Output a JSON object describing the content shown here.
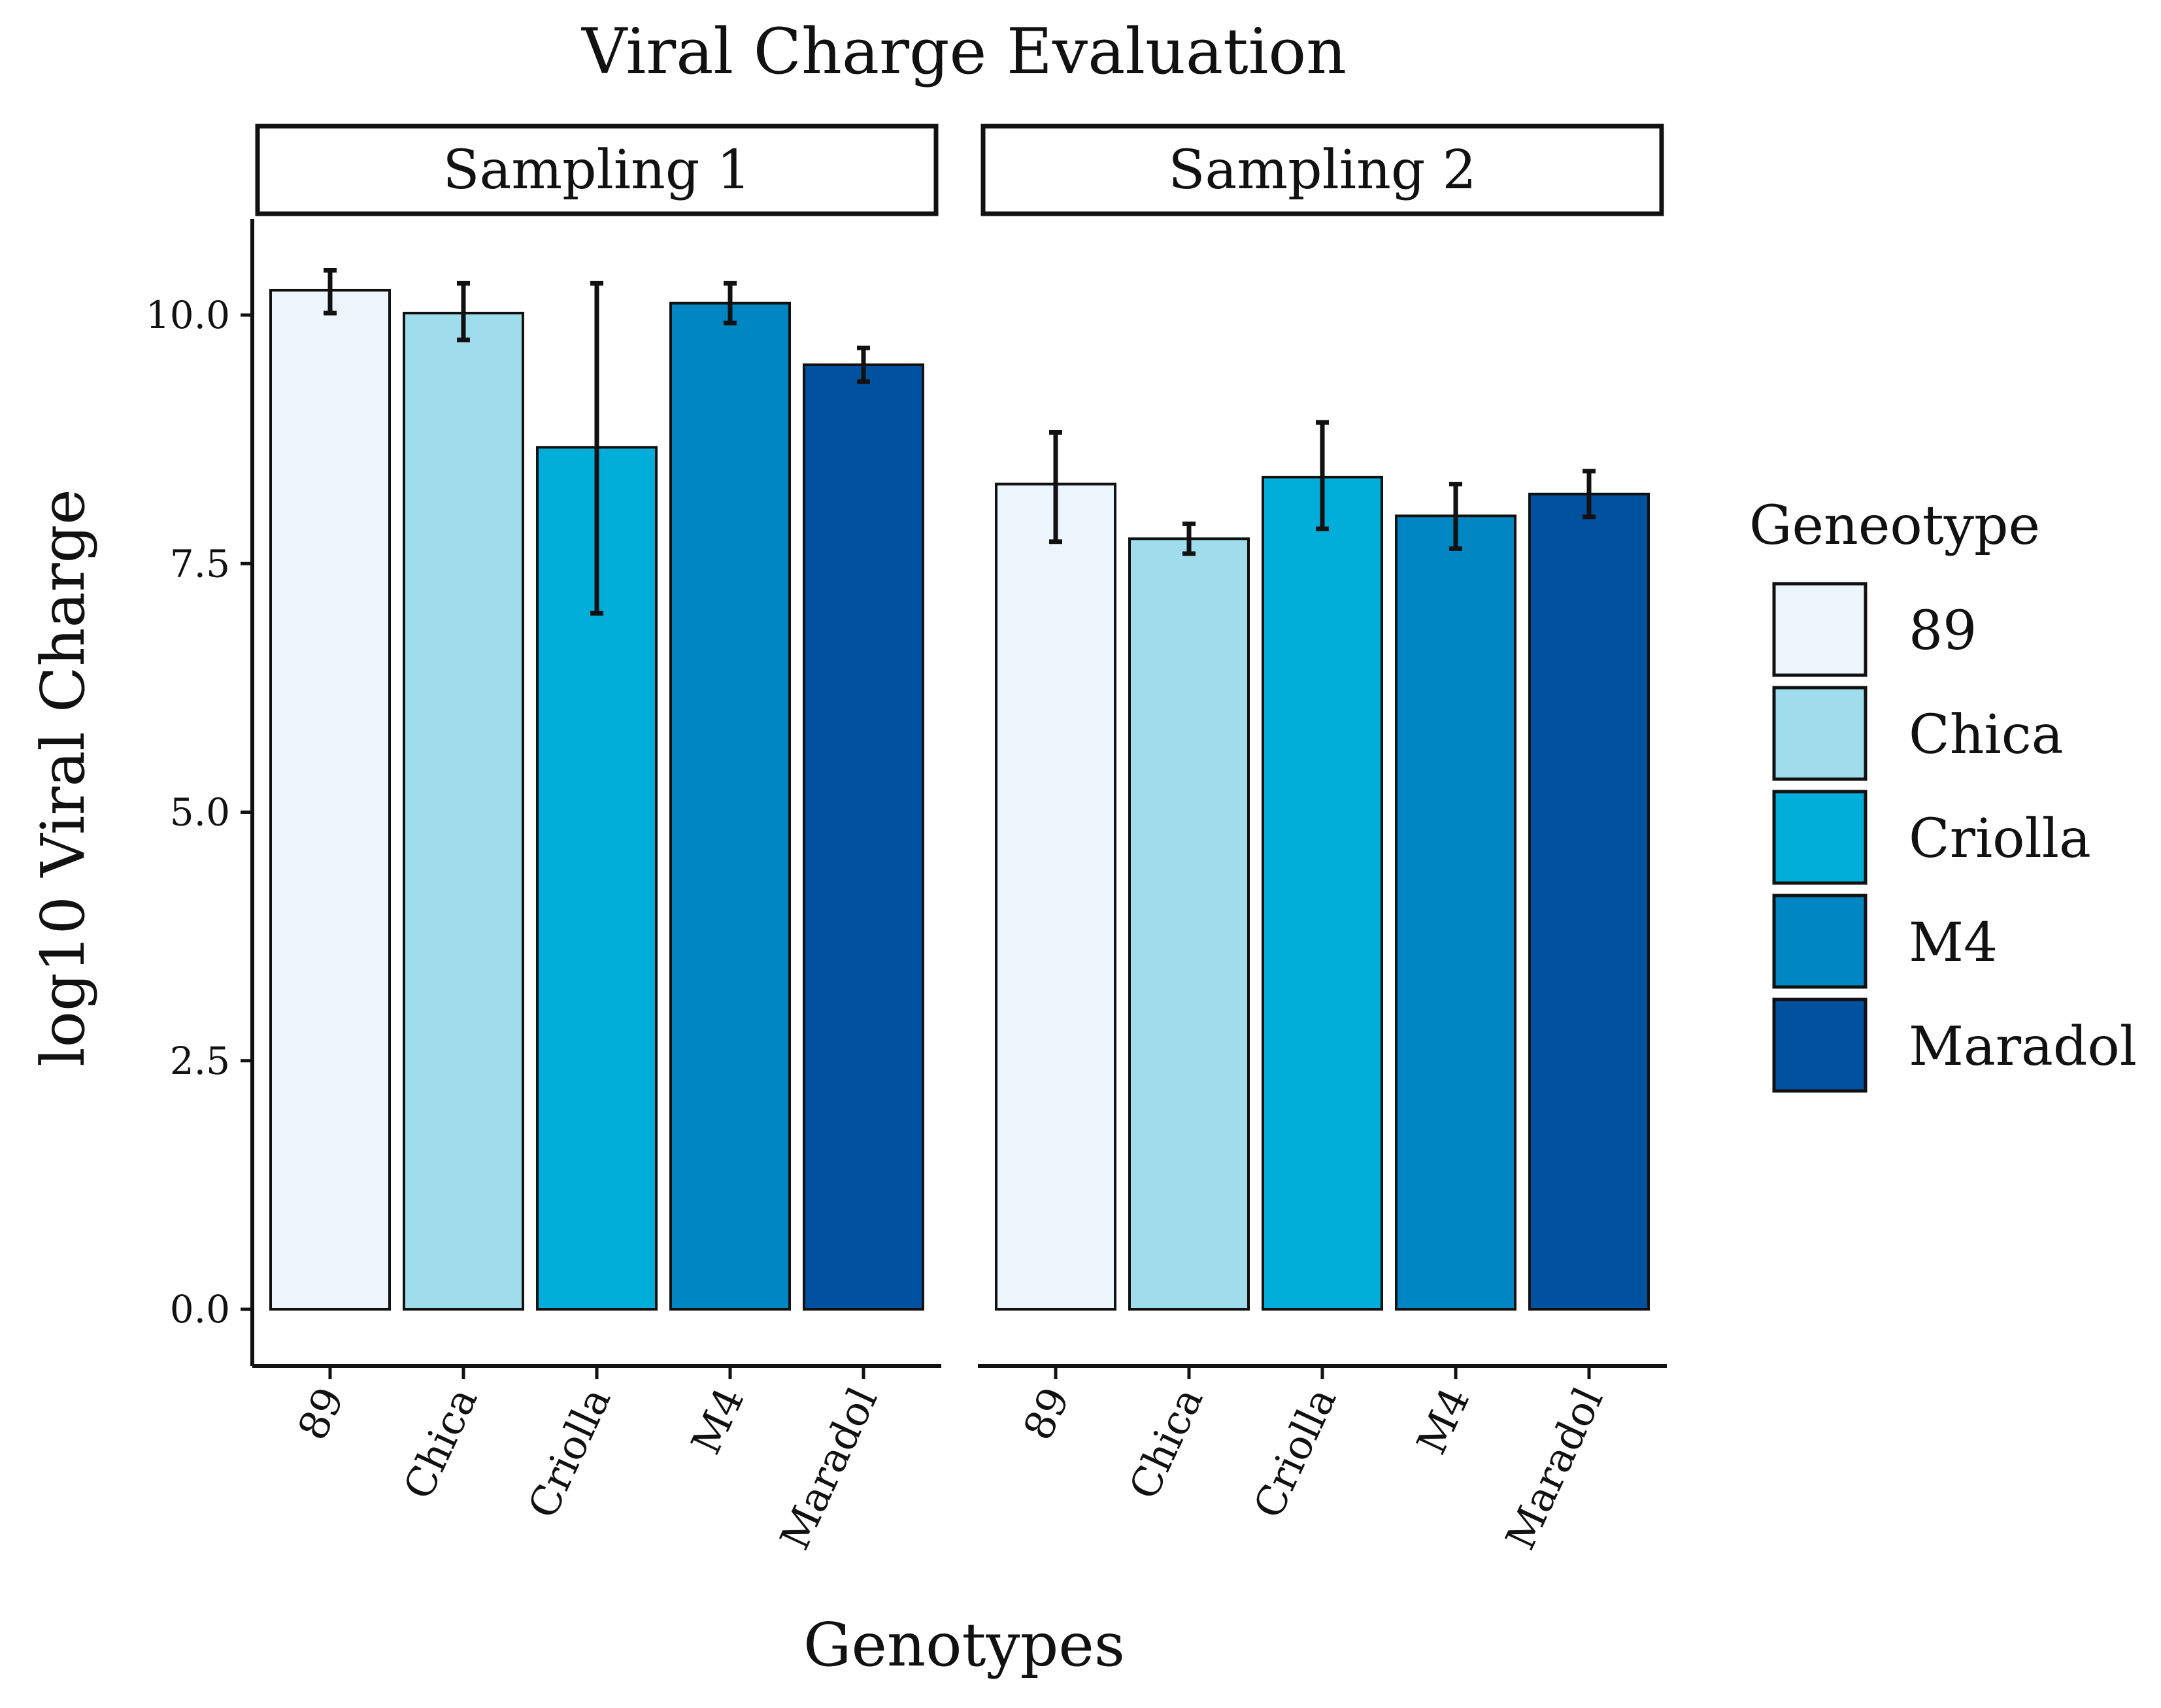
{
  "chart_data": {
    "type": "bar",
    "title": "Viral Charge Evaluation",
    "xlabel": "Genotypes",
    "ylabel": "log10 Viral Charge",
    "ylim": [
      -1,
      11
    ],
    "yticks": [
      0,
      2.5,
      5,
      7.5,
      10
    ],
    "ytick_labels": [
      "0.0",
      "2.5",
      "5.0",
      "7.5",
      "10.0"
    ],
    "grid": false,
    "legend_position": "right",
    "categories": [
      "89",
      "Chica",
      "Criolla",
      "M4",
      "Maradol"
    ],
    "legend": {
      "title": "Geneotype",
      "entries": [
        {
          "label": "89",
          "color": "#ebf5fb"
        },
        {
          "label": "Chica",
          "color": "#9fdcec"
        },
        {
          "label": "Criolla",
          "color": "#00aed9"
        },
        {
          "label": "M4",
          "color": "#0086c3"
        },
        {
          "label": "Maradol",
          "color": "#0051a0"
        }
      ]
    },
    "panels": [
      {
        "label": "Sampling 1",
        "values": [
          10.25,
          10.02,
          8.67,
          10.12,
          9.5
        ],
        "err_low": [
          10.02,
          9.75,
          7.0,
          9.92,
          9.33
        ],
        "err_high": [
          10.45,
          10.32,
          10.32,
          10.32,
          9.67
        ]
      },
      {
        "label": "Sampling 2",
        "values": [
          8.3,
          7.75,
          8.37,
          7.98,
          8.2
        ],
        "err_low": [
          7.72,
          7.6,
          7.85,
          7.65,
          7.97
        ],
        "err_high": [
          8.82,
          7.9,
          8.92,
          8.3,
          8.43
        ]
      }
    ]
  }
}
